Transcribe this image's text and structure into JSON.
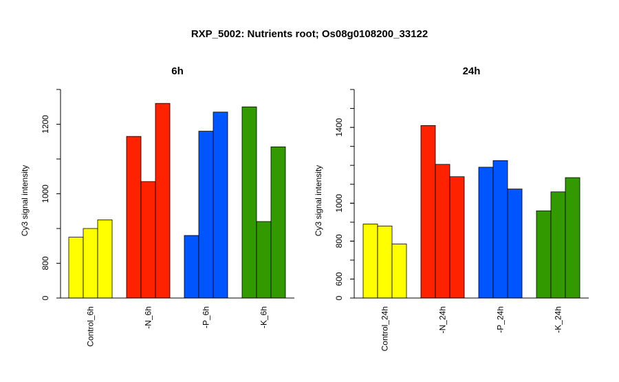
{
  "figure": {
    "title": "RXP_5002: Nutrients root; Os08g0108200_33122"
  },
  "chart_data": [
    {
      "type": "bar",
      "title": "6h",
      "ylabel": "Cy3 signal intensity",
      "xlabel": "",
      "y_scale": "broken (0, then 700–1300)",
      "yticks": [
        0,
        800,
        1000,
        1200
      ],
      "categories": [
        "Control_6h",
        "-N_6h",
        "-P_6h",
        "-K_6h"
      ],
      "colors": [
        "#ffff00",
        "#ff2200",
        "#0055ff",
        "#339900"
      ],
      "series": [
        {
          "values": [
            875,
            1165,
            880,
            1250
          ]
        },
        {
          "values": [
            900,
            1035,
            1180,
            920
          ]
        },
        {
          "values": [
            925,
            1260,
            1235,
            1135
          ]
        }
      ],
      "grid": false,
      "legend": "none"
    },
    {
      "type": "bar",
      "title": "24h",
      "ylabel": "Cy3 signal intensity",
      "xlabel": "",
      "y_scale": "broken (0, then 500–1600)",
      "yticks": [
        0,
        600,
        800,
        1000,
        1400
      ],
      "categories": [
        "Control_24h",
        "-N_24h",
        "-P_24h",
        "-K_24h"
      ],
      "colors": [
        "#ffff00",
        "#ff2200",
        "#0055ff",
        "#339900"
      ],
      "series": [
        {
          "values": [
            890,
            1410,
            1190,
            960
          ]
        },
        {
          "values": [
            880,
            1205,
            1225,
            1060
          ]
        },
        {
          "values": [
            785,
            1140,
            1075,
            1135
          ]
        }
      ],
      "grid": false,
      "legend": "none"
    }
  ]
}
